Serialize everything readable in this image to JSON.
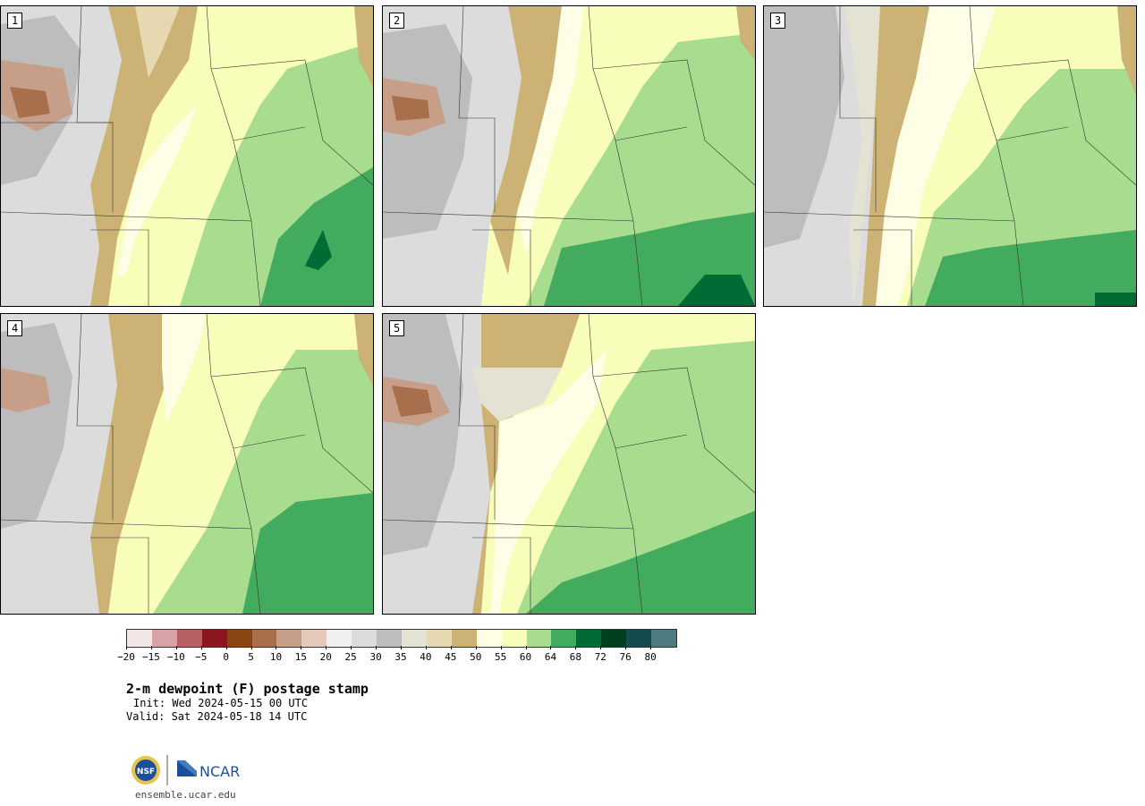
{
  "panels": [
    {
      "label": "1"
    },
    {
      "label": "2"
    },
    {
      "label": "3"
    },
    {
      "label": "4"
    },
    {
      "label": "5"
    }
  ],
  "legend": {
    "colors": [
      "#f3e6e6",
      "#d8a3a8",
      "#b56063",
      "#8b1620",
      "#8b4513",
      "#a86f4c",
      "#c79f89",
      "#e4c9b8",
      "#f0f0f0",
      "#dcdcdc",
      "#bdbdbd",
      "#e4e2d3",
      "#e6d8b0",
      "#cdb276",
      "#fefde6",
      "#f8fdba",
      "#a8dc8e",
      "#42ab5d",
      "#006b35",
      "#00401f",
      "#154a4f",
      "#4f7c80"
    ],
    "tick_labels": [
      "−20",
      "−15",
      "−10",
      "−5",
      "0",
      "5",
      "10",
      "15",
      "20",
      "25",
      "30",
      "35",
      "40",
      "45",
      "50",
      "55",
      "60",
      "64",
      "68",
      "72",
      "76",
      "80"
    ]
  },
  "title": "2-m dewpoint (F) postage stamp",
  "init": "Init: Wed 2024-05-15 00 UTC",
  "valid": "Valid: Sat 2024-05-18 14 UTC",
  "logos": {
    "nsf": "NSF",
    "ncar": "NCAR"
  },
  "site": "ensemble.ucar.edu"
}
